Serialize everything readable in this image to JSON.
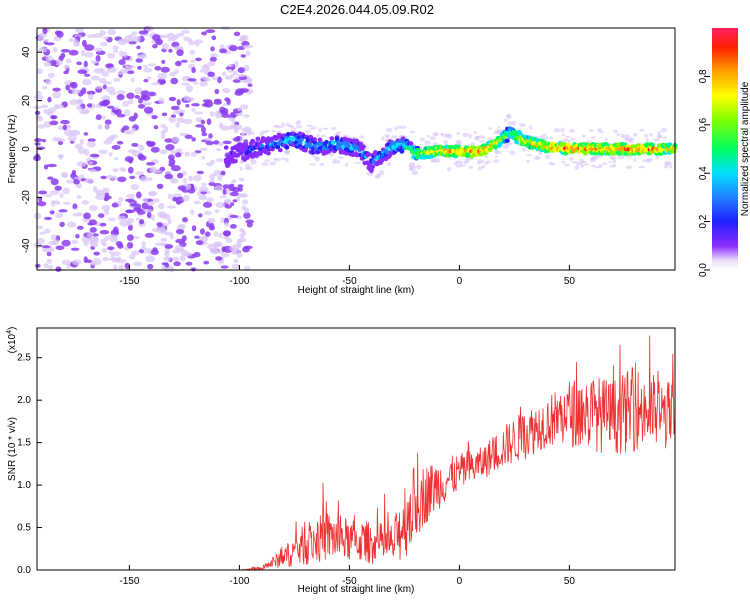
{
  "title": "C2E4.2026.044.05.09.R02",
  "chart_data": [
    {
      "type": "heatmap",
      "xlabel": "Height of straight line (km)",
      "ylabel": "Frequency (Hz)",
      "xlim": [
        -192,
        98
      ],
      "ylim": [
        -50,
        50
      ],
      "x_ticks": [
        -150,
        -100,
        -50,
        0,
        50
      ],
      "y_ticks": [
        -40,
        -20,
        0,
        20,
        40
      ],
      "colorbar": {
        "label": "Normalized spectral amplitude",
        "range": [
          0.0,
          1.0
        ],
        "ticks": [
          "0.0",
          "0.2",
          "0.4",
          "0.6",
          "0.8"
        ],
        "tick_values": [
          0.0,
          0.2,
          0.4,
          0.6,
          0.8
        ]
      },
      "colors": {
        "noise": "#8a3cf0",
        "noise_faint": "#d8c4f6",
        "peak": "#ff2a1e"
      },
      "ridge": {
        "x": [
          -105,
          -95,
          -85,
          -75,
          -65,
          -55,
          -45,
          -40,
          -35,
          -30,
          -25,
          -20,
          -10,
          0,
          10,
          18,
          23,
          30,
          40,
          50,
          60,
          70,
          80,
          90,
          98
        ],
        "freq": [
          -3,
          0,
          2,
          4,
          1,
          2,
          0,
          -6,
          -2,
          1,
          2,
          -2,
          -1,
          -1,
          -1,
          3,
          7,
          3,
          1,
          0,
          0,
          0,
          0,
          0,
          0
        ],
        "amplitude": [
          0.15,
          0.25,
          0.35,
          0.45,
          0.4,
          0.45,
          0.4,
          0.35,
          0.4,
          0.5,
          0.5,
          0.65,
          0.85,
          0.9,
          0.9,
          0.8,
          0.55,
          0.8,
          0.85,
          0.9,
          0.9,
          0.9,
          0.9,
          0.85,
          0.8
        ]
      }
    },
    {
      "type": "line",
      "xlabel": "Height of straight line (km)",
      "ylabel": "SNR (10 * v/v)",
      "y_scale_label": "(x10",
      "y_scale_exp": "4",
      "y_scale_close": ")",
      "xlim": [
        -192,
        98
      ],
      "ylim": [
        0,
        2.85
      ],
      "x_ticks": [
        -150,
        -100,
        -50,
        0,
        50
      ],
      "y_ticks": [
        "0.0",
        "0.5",
        "1.0",
        "1.5",
        "2.0",
        "2.5"
      ],
      "y_tick_values": [
        0,
        0.5,
        1.0,
        1.5,
        2.0,
        2.5
      ],
      "series": [
        {
          "name": "SNR",
          "color": "#ee3030",
          "x": [
            -192,
            -100,
            -90,
            -80,
            -70,
            -60,
            -50,
            -40,
            -30,
            -25,
            -20,
            -15,
            -10,
            0,
            10,
            20,
            30,
            40,
            50,
            60,
            70,
            80,
            90,
            98
          ],
          "y": [
            0.0,
            0.0,
            0.02,
            0.15,
            0.3,
            0.4,
            0.35,
            0.32,
            0.3,
            0.6,
            0.8,
            0.9,
            1.0,
            1.15,
            1.25,
            1.45,
            1.6,
            1.75,
            1.85,
            1.85,
            1.8,
            1.9,
            1.85,
            1.8
          ],
          "spread": [
            0.0,
            0.0,
            0.02,
            0.12,
            0.25,
            0.3,
            0.25,
            0.25,
            0.25,
            0.5,
            0.45,
            0.35,
            0.3,
            0.22,
            0.2,
            0.25,
            0.3,
            0.3,
            0.4,
            0.45,
            0.45,
            0.5,
            0.45,
            0.4
          ]
        }
      ]
    }
  ]
}
